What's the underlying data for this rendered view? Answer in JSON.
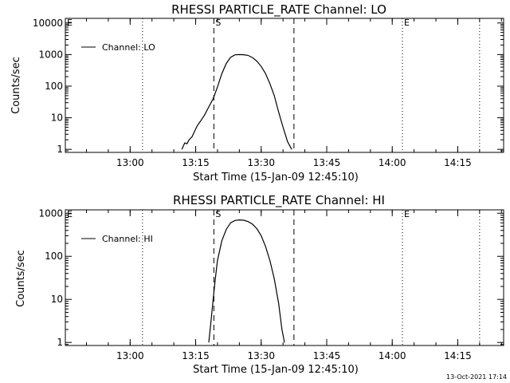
{
  "footer_timestamp": "13-Oct-2021 17:14",
  "chart_data": [
    {
      "type": "line",
      "title": "RHESSI PARTICLE_RATE Channel: LO",
      "xlabel": "Start Time (15-Jan-09 12:45:10)",
      "ylabel": "Counts/sec",
      "yscale": "log",
      "xlim": [
        "12:45:10",
        "14:25:30"
      ],
      "ylim": [
        0.8,
        14000
      ],
      "x_ticks": [
        "13:00",
        "13:15",
        "13:30",
        "13:45",
        "14:00",
        "14:15"
      ],
      "y_ticks": [
        {
          "value": 1,
          "label": "1"
        },
        {
          "value": 10,
          "label": "10"
        },
        {
          "value": 100,
          "label": "100"
        },
        {
          "value": 1000,
          "label": "1000"
        },
        {
          "value": 10000,
          "label": "10000"
        }
      ],
      "legend": {
        "label": "Channel: LO",
        "position": "top-left"
      },
      "markers": [
        {
          "time": "12:45:10",
          "label": "E",
          "style": "dotted"
        },
        {
          "time": "13:02:50",
          "label": "",
          "style": "dotted"
        },
        {
          "time": "13:19:10",
          "label": "S",
          "style": "dashed"
        },
        {
          "time": "13:37:30",
          "label": "",
          "style": "dashed"
        },
        {
          "time": "14:02:20",
          "label": "E",
          "style": "dotted"
        },
        {
          "time": "14:20:00",
          "label": "",
          "style": "dotted"
        }
      ],
      "series": [
        {
          "name": "Channel: LO",
          "x": [
            "13:11:50",
            "13:12:30",
            "13:13:00",
            "13:13:30",
            "13:14:10",
            "13:14:40",
            "13:15:20",
            "13:16:10",
            "13:17:00",
            "13:18:00",
            "13:19:00",
            "13:20:00",
            "13:21:00",
            "13:22:00",
            "13:23:00",
            "13:24:00",
            "13:25:00",
            "13:26:00",
            "13:27:00",
            "13:28:00",
            "13:29:00",
            "13:30:00",
            "13:31:00",
            "13:32:00",
            "13:33:00",
            "13:34:00",
            "13:35:00",
            "13:36:00",
            "13:37:00"
          ],
          "y": [
            1,
            1.6,
            1.5,
            2,
            2.5,
            3.5,
            5.5,
            8,
            12,
            22,
            40,
            95,
            250,
            520,
            820,
            980,
            1000,
            990,
            940,
            800,
            620,
            420,
            250,
            120,
            50,
            15,
            5,
            1.8,
            1
          ]
        }
      ]
    },
    {
      "type": "line",
      "title": "RHESSI PARTICLE_RATE Channel: HI",
      "xlabel": "Start Time (15-Jan-09 12:45:10)",
      "ylabel": "Counts/sec",
      "yscale": "log",
      "xlim": [
        "12:45:10",
        "14:25:30"
      ],
      "ylim": [
        0.85,
        1200
      ],
      "x_ticks": [
        "13:00",
        "13:15",
        "13:30",
        "13:45",
        "14:00",
        "14:15"
      ],
      "y_ticks": [
        {
          "value": 1,
          "label": "1"
        },
        {
          "value": 10,
          "label": "10"
        },
        {
          "value": 100,
          "label": "100"
        },
        {
          "value": 1000,
          "label": "1000"
        }
      ],
      "legend": {
        "label": "Channel: HI",
        "position": "top-left"
      },
      "markers": [
        {
          "time": "12:45:10",
          "label": "E",
          "style": "dotted"
        },
        {
          "time": "13:02:50",
          "label": "",
          "style": "dotted"
        },
        {
          "time": "13:19:10",
          "label": "S",
          "style": "dashed"
        },
        {
          "time": "13:37:30",
          "label": "",
          "style": "dashed"
        },
        {
          "time": "14:02:20",
          "label": "E",
          "style": "dotted"
        },
        {
          "time": "14:20:00",
          "label": "",
          "style": "dotted"
        }
      ],
      "series": [
        {
          "name": "Channel: HI",
          "x": [
            "13:18:00",
            "13:18:30",
            "13:19:00",
            "13:19:30",
            "13:20:00",
            "13:21:00",
            "13:22:00",
            "13:23:00",
            "13:24:00",
            "13:25:00",
            "13:26:00",
            "13:27:00",
            "13:28:00",
            "13:29:00",
            "13:30:00",
            "13:31:00",
            "13:32:00",
            "13:33:00",
            "13:34:00",
            "13:34:45",
            "13:35:20"
          ],
          "y": [
            1,
            3,
            10,
            30,
            80,
            230,
            420,
            600,
            680,
            700,
            690,
            640,
            560,
            440,
            300,
            170,
            80,
            30,
            8,
            2,
            1
          ]
        }
      ]
    }
  ]
}
